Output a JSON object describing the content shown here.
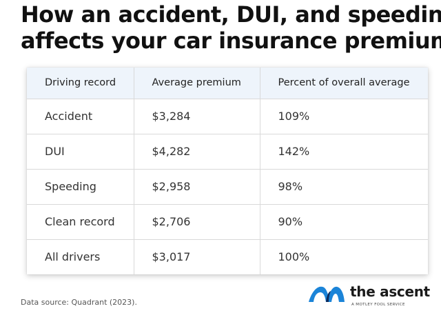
{
  "headline": {
    "line1": "How an accident, DUI, and speeding",
    "line2": "affects your car insurance premium"
  },
  "chart_data": {
    "type": "table",
    "columns": [
      "Driving record",
      "Average premium",
      "Percent of overall average"
    ],
    "rows": [
      [
        "Accident",
        "$3,284",
        "109%"
      ],
      [
        "DUI",
        "$4,282",
        "142%"
      ],
      [
        "Speeding",
        "$2,958",
        "98%"
      ],
      [
        "Clean record",
        "$2,706",
        "90%"
      ],
      [
        "All drivers",
        "$3,017",
        "100%"
      ]
    ]
  },
  "footer": {
    "source": "Data source: Quadrant (2023)."
  },
  "logo": {
    "wordmark": "the ascent",
    "tagline": "A MOTLEY FOOL SERVICE",
    "icon": "ascent-mountain-icon"
  },
  "colors": {
    "header_row": "#eef4fb",
    "logo_blue": "#1b84d8",
    "logo_navy": "#0d2b5c"
  }
}
